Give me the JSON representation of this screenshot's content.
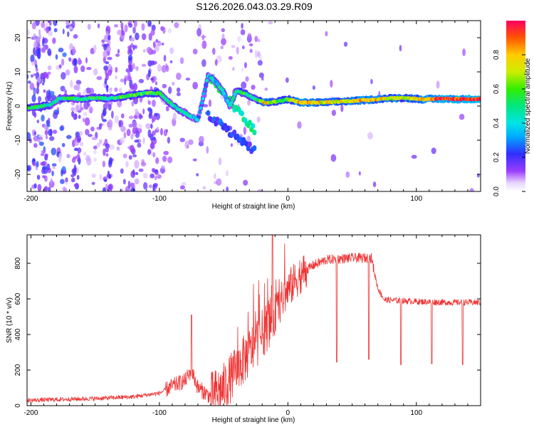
{
  "title": "S126.2026.043.03.29.R09",
  "chart_data": [
    {
      "type": "heatmap",
      "xlabel": "Height of straight line (km)",
      "ylabel": "Frequency (Hz)",
      "xlim": [
        -203,
        150
      ],
      "ylim": [
        -25,
        25
      ],
      "xticks": [
        -200,
        -100,
        0,
        100
      ],
      "yticks": [
        -20,
        -10,
        0,
        10,
        20
      ],
      "ridge": [
        {
          "x": -202,
          "y": -0.5,
          "a": 0.45
        },
        {
          "x": -195,
          "y": -0.3,
          "a": 0.5
        },
        {
          "x": -185,
          "y": 0.3,
          "a": 0.45
        },
        {
          "x": -178,
          "y": 2.2,
          "a": 0.45
        },
        {
          "x": -170,
          "y": 2.3,
          "a": 0.5
        },
        {
          "x": -160,
          "y": 2.0,
          "a": 0.45
        },
        {
          "x": -150,
          "y": 2.4,
          "a": 0.55
        },
        {
          "x": -140,
          "y": 2.2,
          "a": 0.5
        },
        {
          "x": -130,
          "y": 2.6,
          "a": 0.55
        },
        {
          "x": -120,
          "y": 3.2,
          "a": 0.55
        },
        {
          "x": -110,
          "y": 3.8,
          "a": 0.6
        },
        {
          "x": -100,
          "y": 3.8,
          "a": 0.5
        },
        {
          "x": -92,
          "y": 1.0,
          "a": 0.45
        },
        {
          "x": -85,
          "y": -1.0,
          "a": 0.45
        },
        {
          "x": -78,
          "y": -2.5,
          "a": 0.4
        },
        {
          "x": -70,
          "y": -4.0,
          "a": 0.35
        },
        {
          "x": -62,
          "y": 9.0,
          "a": 0.35
        },
        {
          "x": -56,
          "y": 7.0,
          "a": 0.4
        },
        {
          "x": -50,
          "y": 4.0,
          "a": 0.45
        },
        {
          "x": -45,
          "y": 0.0,
          "a": 0.35
        },
        {
          "x": -40,
          "y": 4.5,
          "a": 0.5
        },
        {
          "x": -32,
          "y": 3.5,
          "a": 0.55
        },
        {
          "x": -25,
          "y": 2.0,
          "a": 0.5
        },
        {
          "x": -18,
          "y": 1.0,
          "a": 0.8
        },
        {
          "x": -10,
          "y": 1.2,
          "a": 0.6
        },
        {
          "x": 0,
          "y": 2.0,
          "a": 0.6
        },
        {
          "x": 10,
          "y": 1.0,
          "a": 0.85
        },
        {
          "x": 25,
          "y": 1.0,
          "a": 0.75
        },
        {
          "x": 40,
          "y": 1.3,
          "a": 0.7
        },
        {
          "x": 60,
          "y": 1.7,
          "a": 0.85
        },
        {
          "x": 75,
          "y": 2.2,
          "a": 0.75
        },
        {
          "x": 90,
          "y": 2.4,
          "a": 0.7
        },
        {
          "x": 105,
          "y": 2.0,
          "a": 0.8
        },
        {
          "x": 120,
          "y": 2.1,
          "a": 0.95
        },
        {
          "x": 135,
          "y": 2.0,
          "a": 0.95
        },
        {
          "x": 150,
          "y": 2.1,
          "a": 0.95
        }
      ],
      "colorbar": {
        "label": "Normalized spectral amplitude",
        "range": [
          0,
          1
        ],
        "ticks": [
          0.0,
          0.2,
          0.4,
          0.6,
          0.8
        ],
        "tick_labels": [
          "0.0",
          "0.2",
          "0.4",
          "0.6",
          "0.8"
        ],
        "colormap": "rainbow"
      }
    },
    {
      "type": "line",
      "xlabel": "Height of straight line (km)",
      "ylabel": "SNR (10 * v/v)",
      "xlim": [
        -203,
        150
      ],
      "ylim": [
        0,
        960
      ],
      "xticks": [
        -200,
        -100,
        0,
        100
      ],
      "yticks": [
        0,
        200,
        400,
        600,
        800
      ],
      "color": "#ee3333",
      "trend": [
        {
          "x": -203,
          "y": 30
        },
        {
          "x": -150,
          "y": 40
        },
        {
          "x": -120,
          "y": 50
        },
        {
          "x": -100,
          "y": 70
        },
        {
          "x": -90,
          "y": 110
        },
        {
          "x": -80,
          "y": 140
        },
        {
          "x": -75,
          "y": 200
        },
        {
          "x": -70,
          "y": 100
        },
        {
          "x": -60,
          "y": 50
        },
        {
          "x": -50,
          "y": 100
        },
        {
          "x": -40,
          "y": 200
        },
        {
          "x": -30,
          "y": 300
        },
        {
          "x": -20,
          "y": 400
        },
        {
          "x": -10,
          "y": 520
        },
        {
          "x": 0,
          "y": 650
        },
        {
          "x": 10,
          "y": 740
        },
        {
          "x": 20,
          "y": 790
        },
        {
          "x": 30,
          "y": 820
        },
        {
          "x": 50,
          "y": 830
        },
        {
          "x": 65,
          "y": 830
        },
        {
          "x": 70,
          "y": 660
        },
        {
          "x": 75,
          "y": 595
        },
        {
          "x": 100,
          "y": 585
        },
        {
          "x": 125,
          "y": 580
        },
        {
          "x": 150,
          "y": 580
        }
      ],
      "spikes": [
        {
          "x": -75,
          "y": 510
        },
        {
          "x": -12,
          "y": 960
        },
        {
          "x": 38,
          "y": 245
        },
        {
          "x": 63,
          "y": 260
        },
        {
          "x": 88,
          "y": 230
        },
        {
          "x": 112,
          "y": 235
        },
        {
          "x": 136,
          "y": 230
        }
      ]
    }
  ]
}
